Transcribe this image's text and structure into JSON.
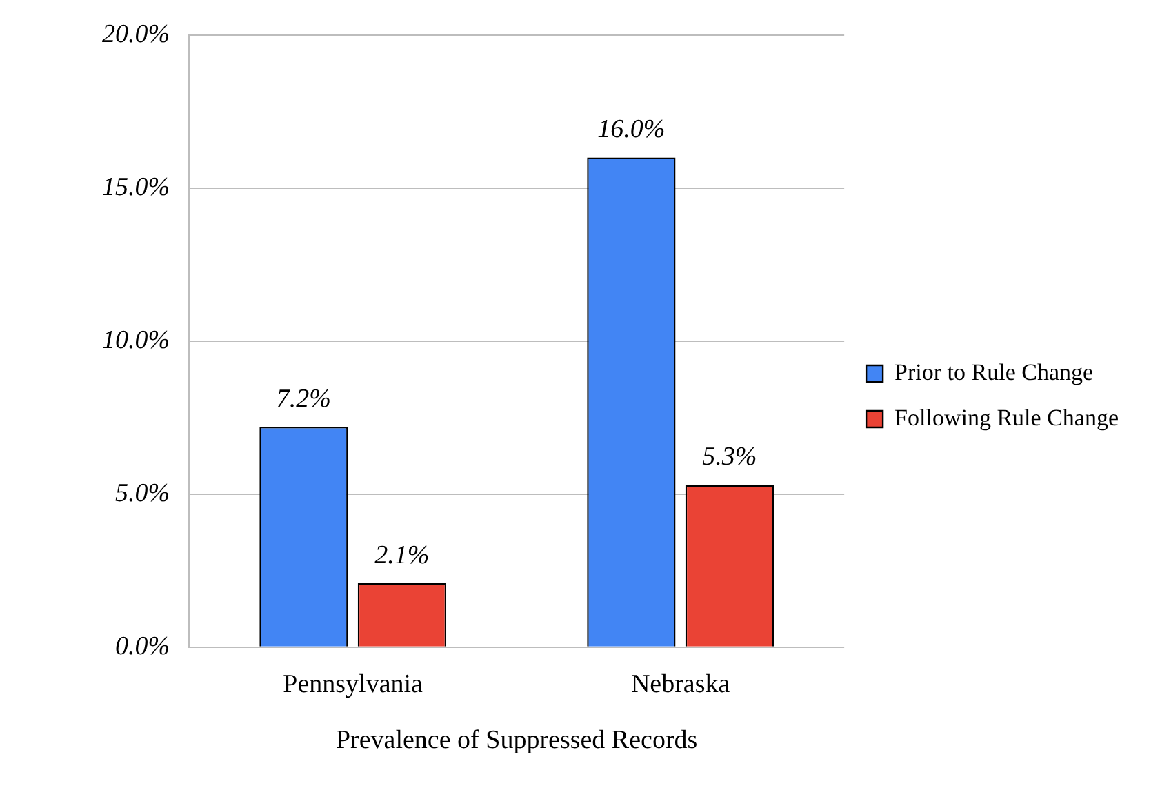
{
  "chart_data": {
    "type": "bar",
    "xlabel": "Prevalence of Suppressed Records",
    "categories": [
      "Pennsylvania",
      "Nebraska"
    ],
    "series": [
      {
        "name": "Prior to Rule Change",
        "color": "#4285f4",
        "values": [
          7.2,
          16.0
        ],
        "value_labels": [
          "7.2%",
          "16.0%"
        ]
      },
      {
        "name": "Following Rule Change",
        "color": "#ea4335",
        "values": [
          2.1,
          5.3
        ],
        "value_labels": [
          "2.1%",
          "5.3%"
        ]
      }
    ],
    "ylim": [
      0,
      20
    ],
    "yticks": [
      {
        "value": 0,
        "label": "0.0%"
      },
      {
        "value": 5,
        "label": "5.0%"
      },
      {
        "value": 10,
        "label": "10.0%"
      },
      {
        "value": 15,
        "label": "15.0%"
      },
      {
        "value": 20,
        "label": "20.0%"
      }
    ],
    "grid": "y",
    "legend": "right"
  }
}
